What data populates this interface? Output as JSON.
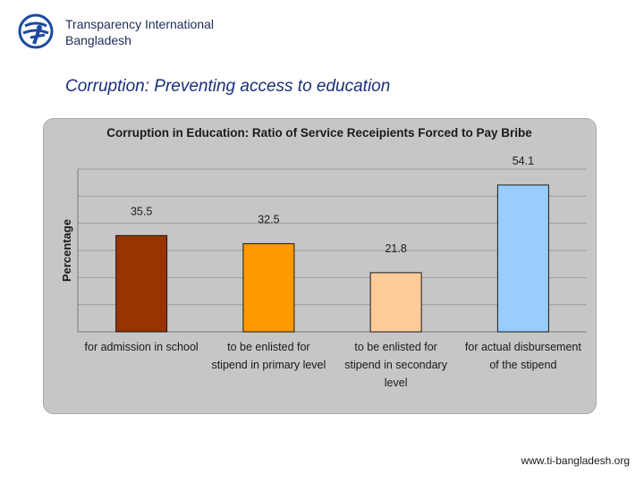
{
  "header": {
    "org_line1": "Transparency International",
    "org_line2": "Bangladesh",
    "logo_icon": "ti-globe-logo-icon"
  },
  "headline": "Corruption: Preventing access to education",
  "footer": {
    "url": "www.ti-bangladesh.org"
  },
  "colors": {
    "brand": "#1a4aa0",
    "headline": "#1a2f7a"
  },
  "chart_data": {
    "type": "bar",
    "title": "Corruption in Education: Ratio of Service Receipients Forced to Pay Bribe",
    "xlabel": "",
    "ylabel": "Percentage",
    "ylim": [
      0,
      60
    ],
    "grid": true,
    "legend": "none",
    "categories": [
      [
        "for admission in school"
      ],
      [
        "to be enlisted for",
        "stipend in primary level"
      ],
      [
        "to be enlisted for",
        "stipend in secondary",
        "level"
      ],
      [
        "for actual disbursement",
        "of the stipend"
      ]
    ],
    "values": [
      35.5,
      32.5,
      21.8,
      54.1
    ],
    "value_labels": [
      "35.5",
      "32.5",
      "21.8",
      "54.1"
    ],
    "colors": [
      "#993300",
      "#ff9900",
      "#ffcc99",
      "#99ccff"
    ]
  }
}
